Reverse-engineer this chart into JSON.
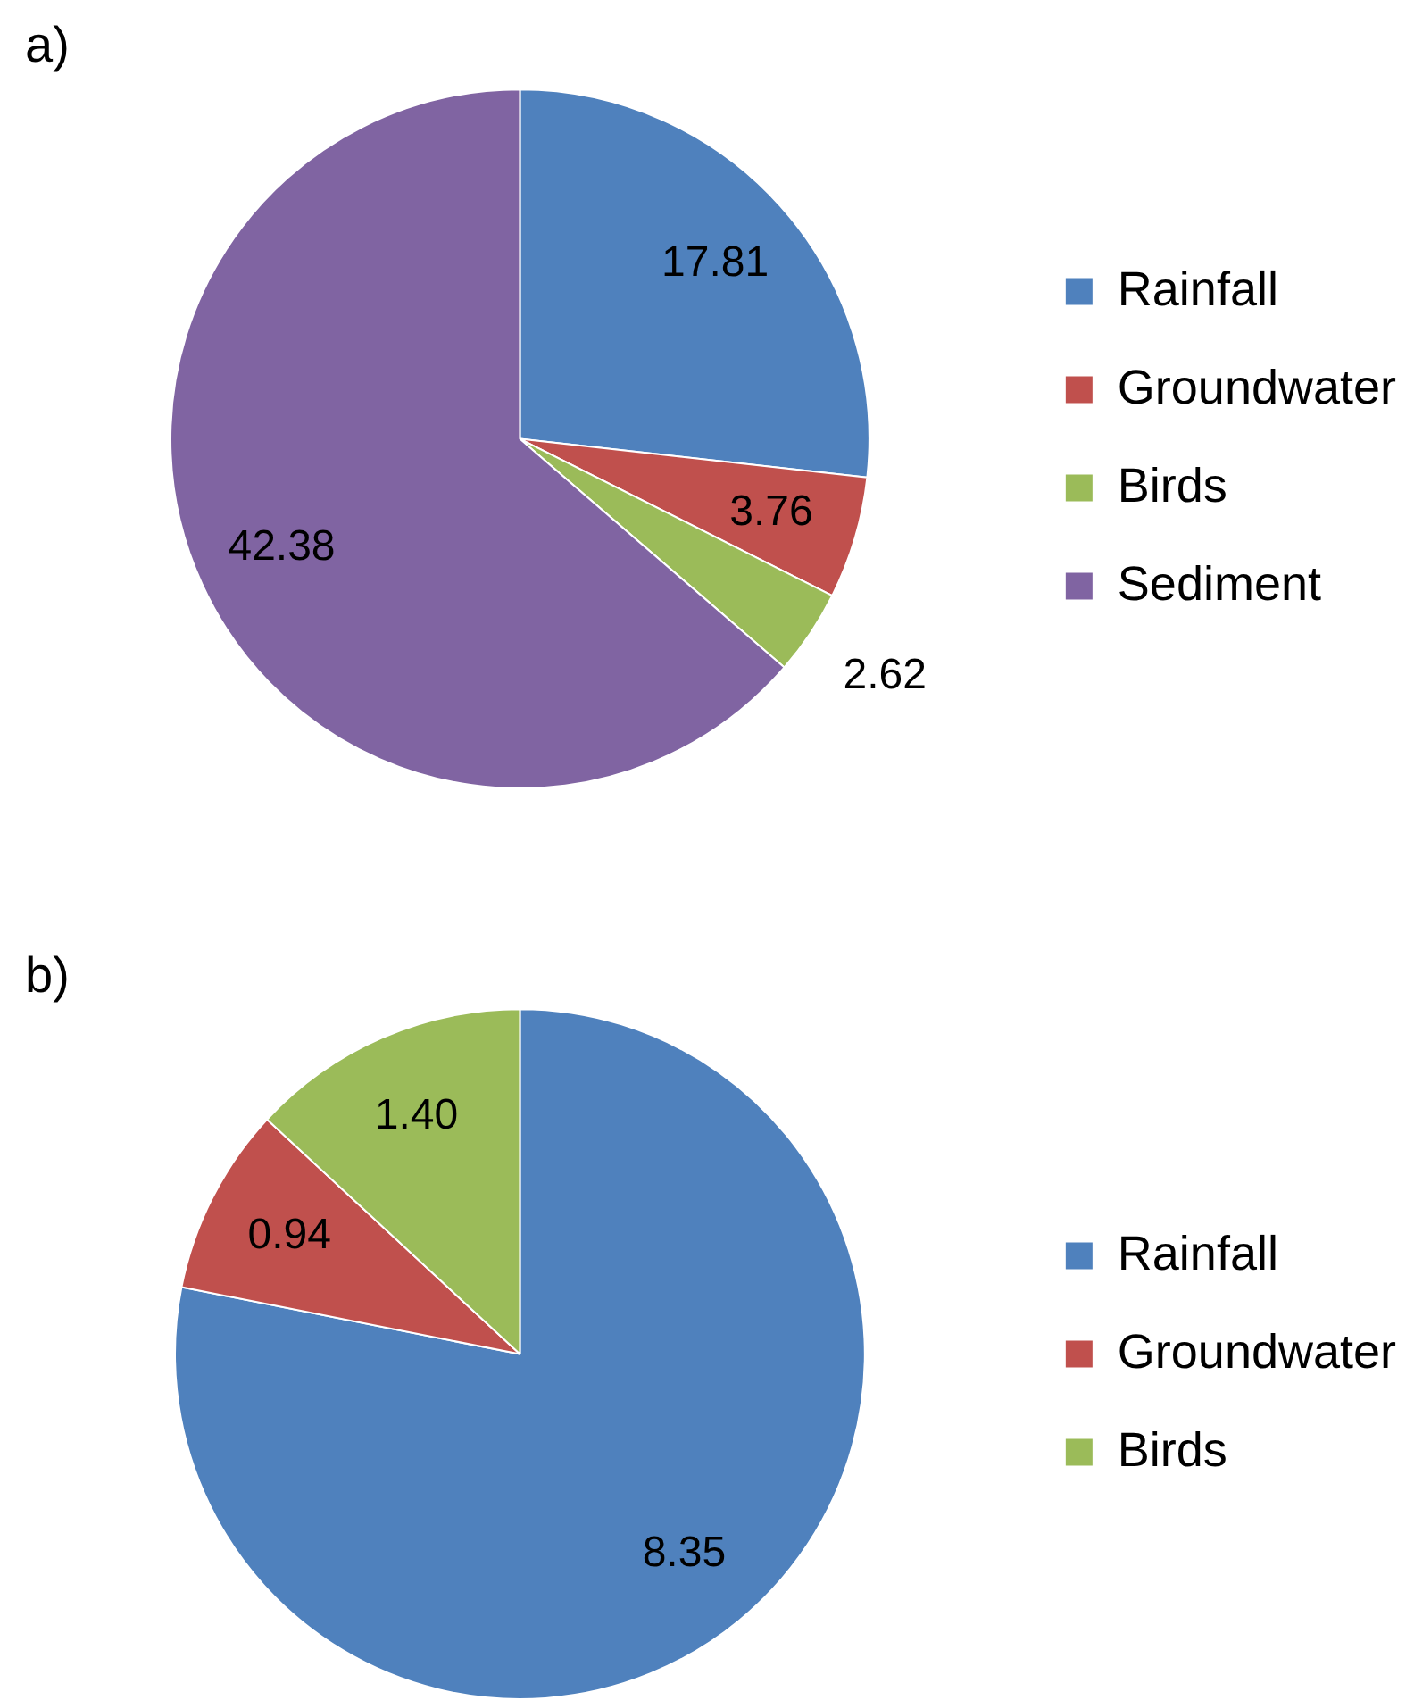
{
  "chart_data": [
    {
      "type": "pie",
      "title": "a)",
      "categories": [
        "Rainfall",
        "Groundwater",
        "Birds",
        "Sediment"
      ],
      "values": [
        17.81,
        3.76,
        2.62,
        42.38
      ],
      "colors": [
        "#4f81bd",
        "#c0504d",
        "#9bbb59",
        "#8064a2"
      ],
      "data_labels": true,
      "legend": "right"
    },
    {
      "type": "pie",
      "title": "b)",
      "categories": [
        "Rainfall",
        "Groundwater",
        "Birds"
      ],
      "values": [
        8.35,
        0.94,
        1.4
      ],
      "colors": [
        "#4f81bd",
        "#c0504d",
        "#9bbb59"
      ],
      "value_labels": [
        "8.35",
        "0.94",
        "1.40"
      ],
      "legend": "right"
    }
  ]
}
